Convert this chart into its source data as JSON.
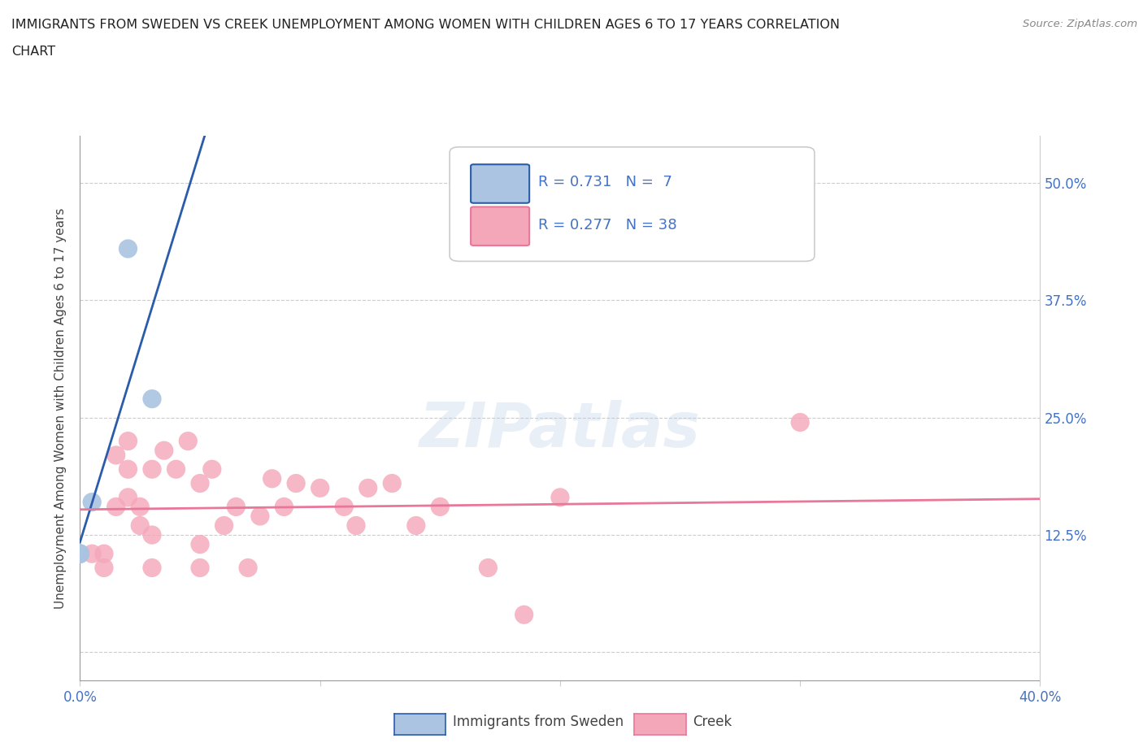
{
  "title_line1": "IMMIGRANTS FROM SWEDEN VS CREEK UNEMPLOYMENT AMONG WOMEN WITH CHILDREN AGES 6 TO 17 YEARS CORRELATION",
  "title_line2": "CHART",
  "source_text": "Source: ZipAtlas.com",
  "ylabel": "Unemployment Among Women with Children Ages 6 to 17 years",
  "xlim": [
    0.0,
    0.4
  ],
  "ylim": [
    -0.03,
    0.55
  ],
  "sweden_r": 0.731,
  "sweden_n": 7,
  "creek_r": 0.277,
  "creek_n": 38,
  "sweden_color": "#aac4e2",
  "creek_color": "#f4a7b9",
  "sweden_line_color": "#2a5caa",
  "creek_line_color": "#e8779a",
  "legend_sweden_label": "Immigrants from Sweden",
  "legend_creek_label": "Creek",
  "watermark": "ZIPatlas",
  "sweden_x": [
    0.0,
    0.0,
    0.0,
    0.0,
    0.005,
    0.02,
    0.03
  ],
  "sweden_y": [
    0.105,
    0.105,
    0.105,
    0.105,
    0.16,
    0.43,
    0.27
  ],
  "creek_x": [
    0.005,
    0.01,
    0.01,
    0.015,
    0.015,
    0.02,
    0.02,
    0.02,
    0.025,
    0.025,
    0.03,
    0.03,
    0.03,
    0.035,
    0.04,
    0.045,
    0.05,
    0.05,
    0.05,
    0.055,
    0.06,
    0.065,
    0.07,
    0.075,
    0.08,
    0.085,
    0.09,
    0.1,
    0.11,
    0.115,
    0.12,
    0.13,
    0.14,
    0.15,
    0.17,
    0.185,
    0.2,
    0.3
  ],
  "creek_y": [
    0.105,
    0.09,
    0.105,
    0.155,
    0.21,
    0.165,
    0.195,
    0.225,
    0.135,
    0.155,
    0.09,
    0.125,
    0.195,
    0.215,
    0.195,
    0.225,
    0.09,
    0.115,
    0.18,
    0.195,
    0.135,
    0.155,
    0.09,
    0.145,
    0.185,
    0.155,
    0.18,
    0.175,
    0.155,
    0.135,
    0.175,
    0.18,
    0.135,
    0.155,
    0.09,
    0.04,
    0.165,
    0.245
  ]
}
